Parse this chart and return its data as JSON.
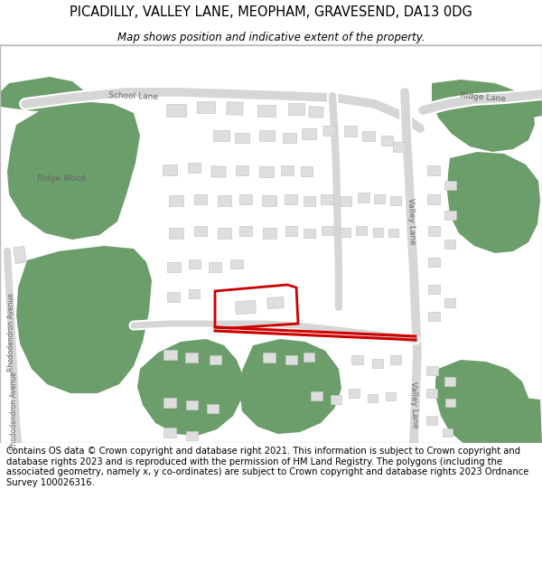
{
  "title": "PICADILLY, VALLEY LANE, MEOPHAM, GRAVESEND, DA13 0DG",
  "subtitle": "Map shows position and indicative extent of the property.",
  "footer": "Contains OS data © Crown copyright and database right 2021. This information is subject to Crown copyright and database rights 2023 and is reproduced with the permission of HM Land Registry. The polygons (including the associated geometry, namely x, y co-ordinates) are subject to Crown copyright and database rights 2023 Ordnance Survey 100026316.",
  "map_bg": "#f7f7f7",
  "green_color": "#6b9e6b",
  "road_color": "#d6d6d6",
  "building_color": "#dedede",
  "building_edge": "#c8c8c8",
  "red_color": "#cc0000",
  "border_color": "#bbbbbb",
  "white": "#ffffff",
  "title_fontsize": 10.5,
  "subtitle_fontsize": 8.5,
  "footer_fontsize": 7.2,
  "label_color": "#666666",
  "label_fontsize": 6.5
}
